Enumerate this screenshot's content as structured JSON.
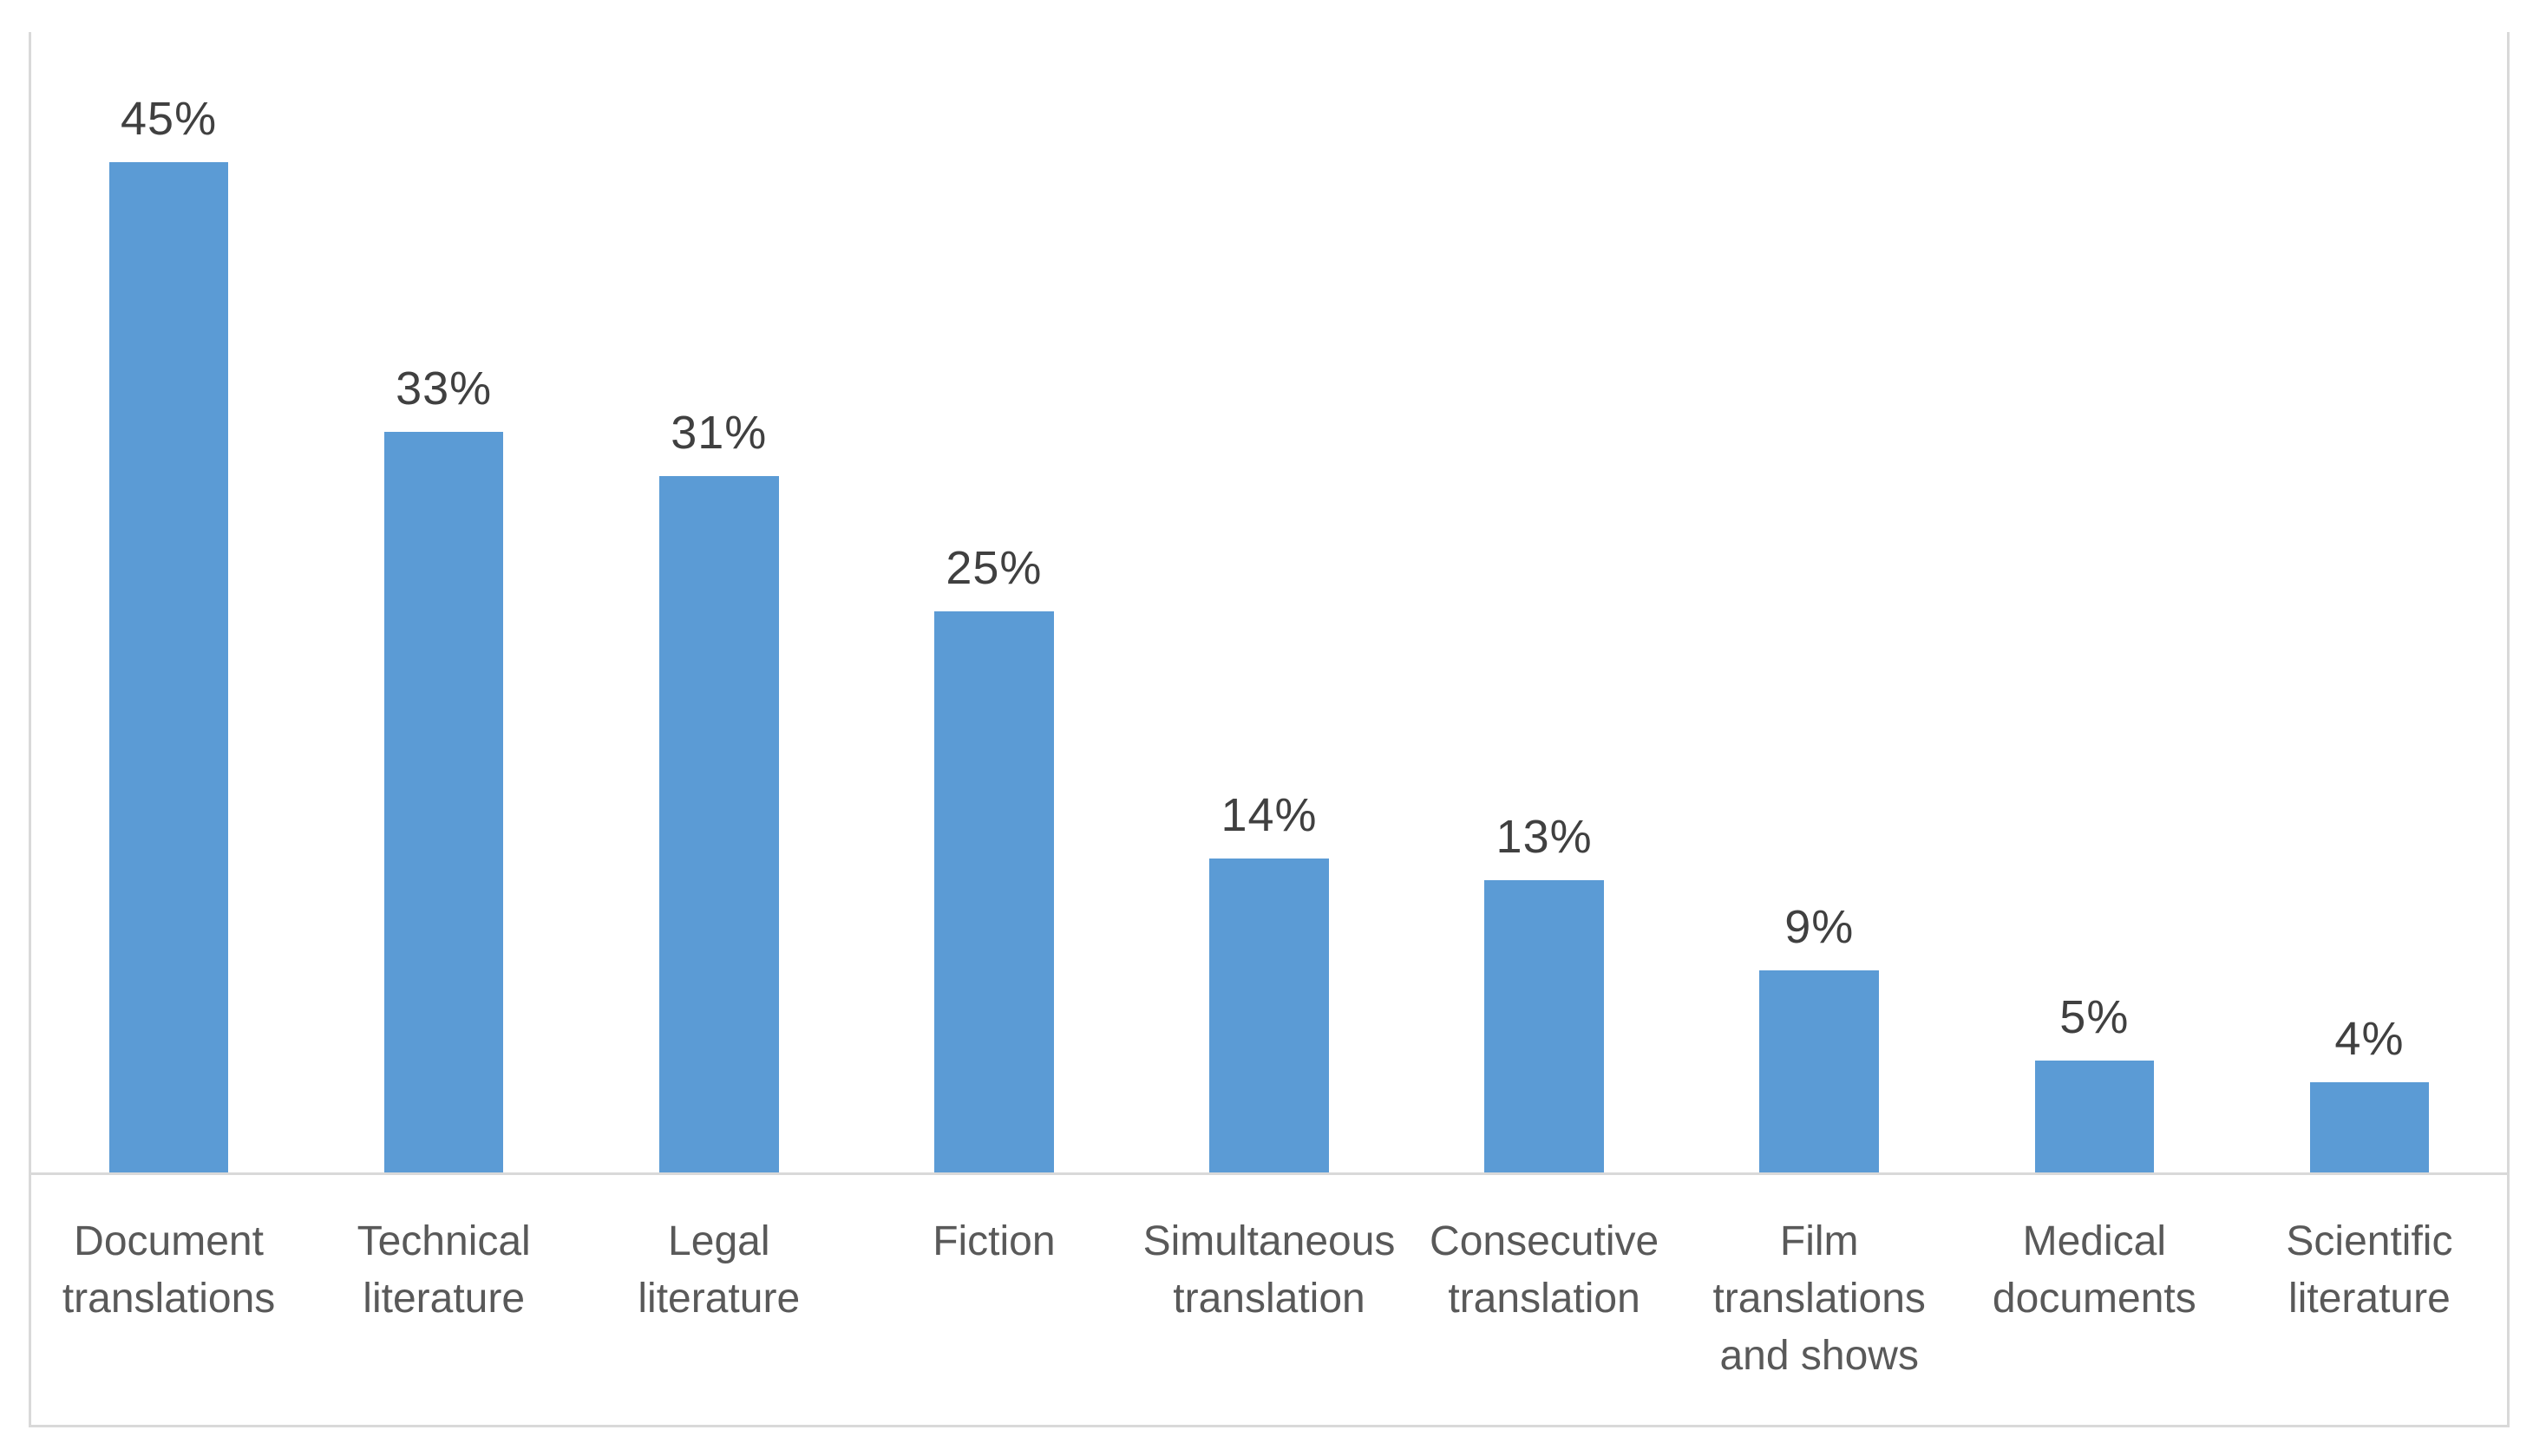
{
  "chart_data": {
    "type": "bar",
    "categories": [
      "Document translations",
      "Technical literature",
      "Legal literature",
      "Fiction",
      "Simultaneous translation",
      "Consecutive translation",
      "Film translations and shows",
      "Medical documents",
      "Scientific literature"
    ],
    "values": [
      45,
      33,
      31,
      25,
      14,
      13,
      9,
      5,
      4
    ],
    "data_labels": [
      "45%",
      "33%",
      "31%",
      "25%",
      "14%",
      "13%",
      "9%",
      "5%",
      "4%"
    ],
    "title": "",
    "xlabel": "",
    "ylabel": "",
    "ylim": [
      0,
      45
    ],
    "grid": false,
    "legend": false,
    "data_labels_position": "above-bars",
    "colors": {
      "bar": "#5B9BD5",
      "value_label": "#404040",
      "category_label": "#595959",
      "axis_line": "#D9D9D9",
      "frame_border": "#D9D9D9",
      "background": "#ffffff"
    }
  }
}
